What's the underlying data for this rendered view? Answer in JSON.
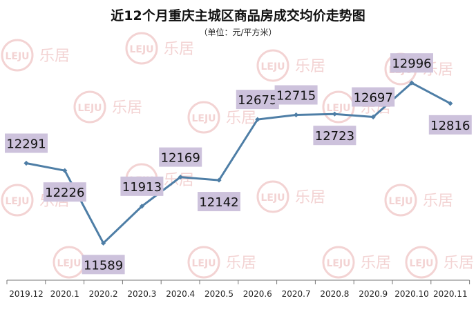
{
  "chart_data": {
    "type": "line",
    "title": "近12个月重庆主城区商品房成交均价走势图",
    "subtitle": "（单位：元/平方米）",
    "categories": [
      "2019.12",
      "2020.1",
      "2020.2",
      "2020.3",
      "2020.4",
      "2020.5",
      "2020.6",
      "2020.7",
      "2020.8",
      "2020.9",
      "2020.10",
      "2020.11"
    ],
    "series": [
      {
        "values": [
          12291,
          12226,
          11589,
          11913,
          12169,
          12142,
          12675,
          12715,
          12723,
          12697,
          12996,
          12816
        ]
      }
    ],
    "ylim": [
      11300,
      13300
    ],
    "grid": false,
    "legend": "none",
    "line_color": "#4e7ea6",
    "label_bg": "#cdc2dc"
  },
  "watermark": {
    "text": "乐居",
    "logo_text": "LEJU",
    "color": "#f3d3d3"
  }
}
